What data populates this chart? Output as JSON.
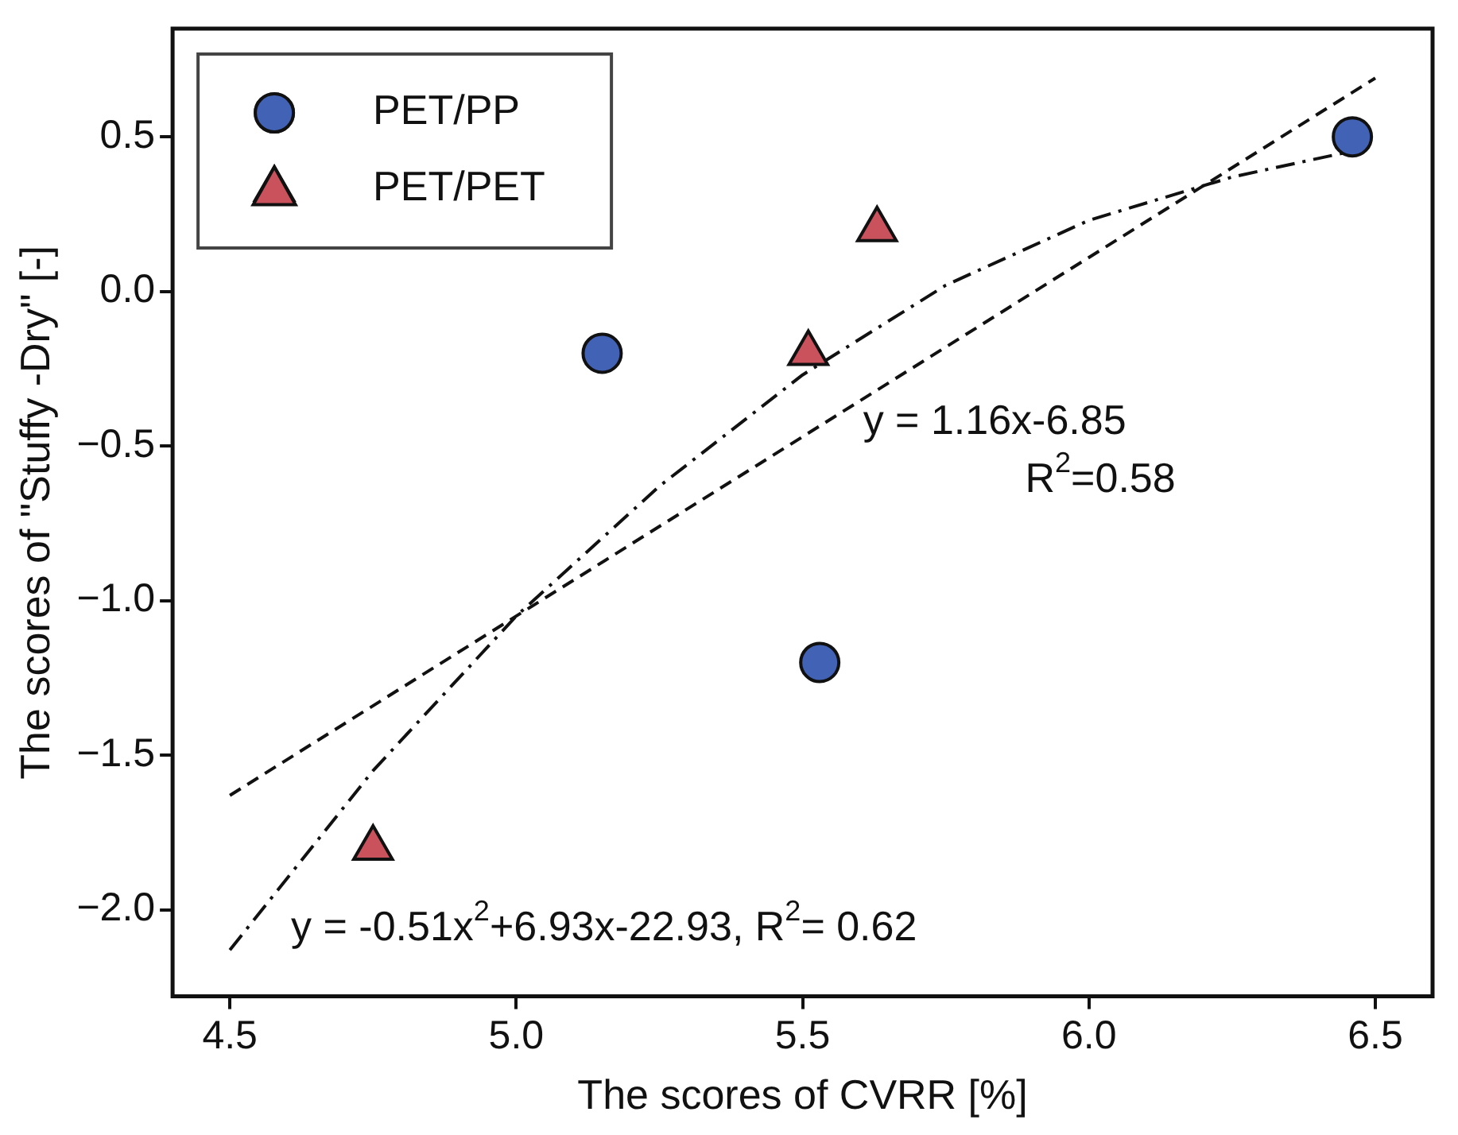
{
  "chart_data": {
    "type": "scatter",
    "xlabel": "The scores of CVRR [%]",
    "ylabel": "The scores of \"Stuffy -Dry\" [-]",
    "xlim": [
      4.4,
      6.6
    ],
    "xticks": [
      4.5,
      {
        "value": 5,
        "label": "5.0"
      },
      5.5,
      {
        "value": 6,
        "label": "6.0"
      },
      6.5
    ],
    "ylim": [
      -2.28,
      0.85
    ],
    "yticks": [
      {
        "value": -2,
        "label": "−2.0"
      },
      -1.5,
      {
        "value": -1,
        "label": "−1.0"
      },
      -0.5,
      {
        "value": 0,
        "label": "0.0"
      },
      0.5
    ],
    "grid": false,
    "legend": "top left",
    "series": [
      {
        "name": "PET/PP",
        "marker": "circle",
        "color": "#4262b5",
        "x": [
          5.15,
          5.53,
          6.46
        ],
        "values": [
          -0.2,
          -1.2,
          0.5
        ]
      },
      {
        "name": "PET/PET",
        "marker": "triangle",
        "color": "#c9525c",
        "x": [
          4.75,
          5.51,
          5.63
        ],
        "values": [
          -1.8,
          -0.2,
          0.2
        ]
      },
      {
        "type": "line",
        "marker": "none",
        "line_style": "dashed",
        "color": "#111111",
        "x": [
          4.5,
          6.5
        ],
        "values": [
          -1.63,
          0.69
        ]
      },
      {
        "type": "line",
        "marker": "none",
        "line_style": "dashdot",
        "color": "#111111",
        "x": [
          4.5,
          4.75,
          5.0,
          5.25,
          5.5,
          5.75,
          6.0,
          6.25,
          6.45
        ],
        "values": [
          -2.13,
          -1.55,
          -1.05,
          -0.63,
          -0.27,
          0.02,
          0.23,
          0.37,
          0.45
        ]
      }
    ],
    "annotations": [
      "y = 1.16x-6.85",
      "R$^{2}$=0.58",
      "y = -0.51x$^{2}$+6.93x-22.93, R$^{2}$= 0.62"
    ]
  }
}
